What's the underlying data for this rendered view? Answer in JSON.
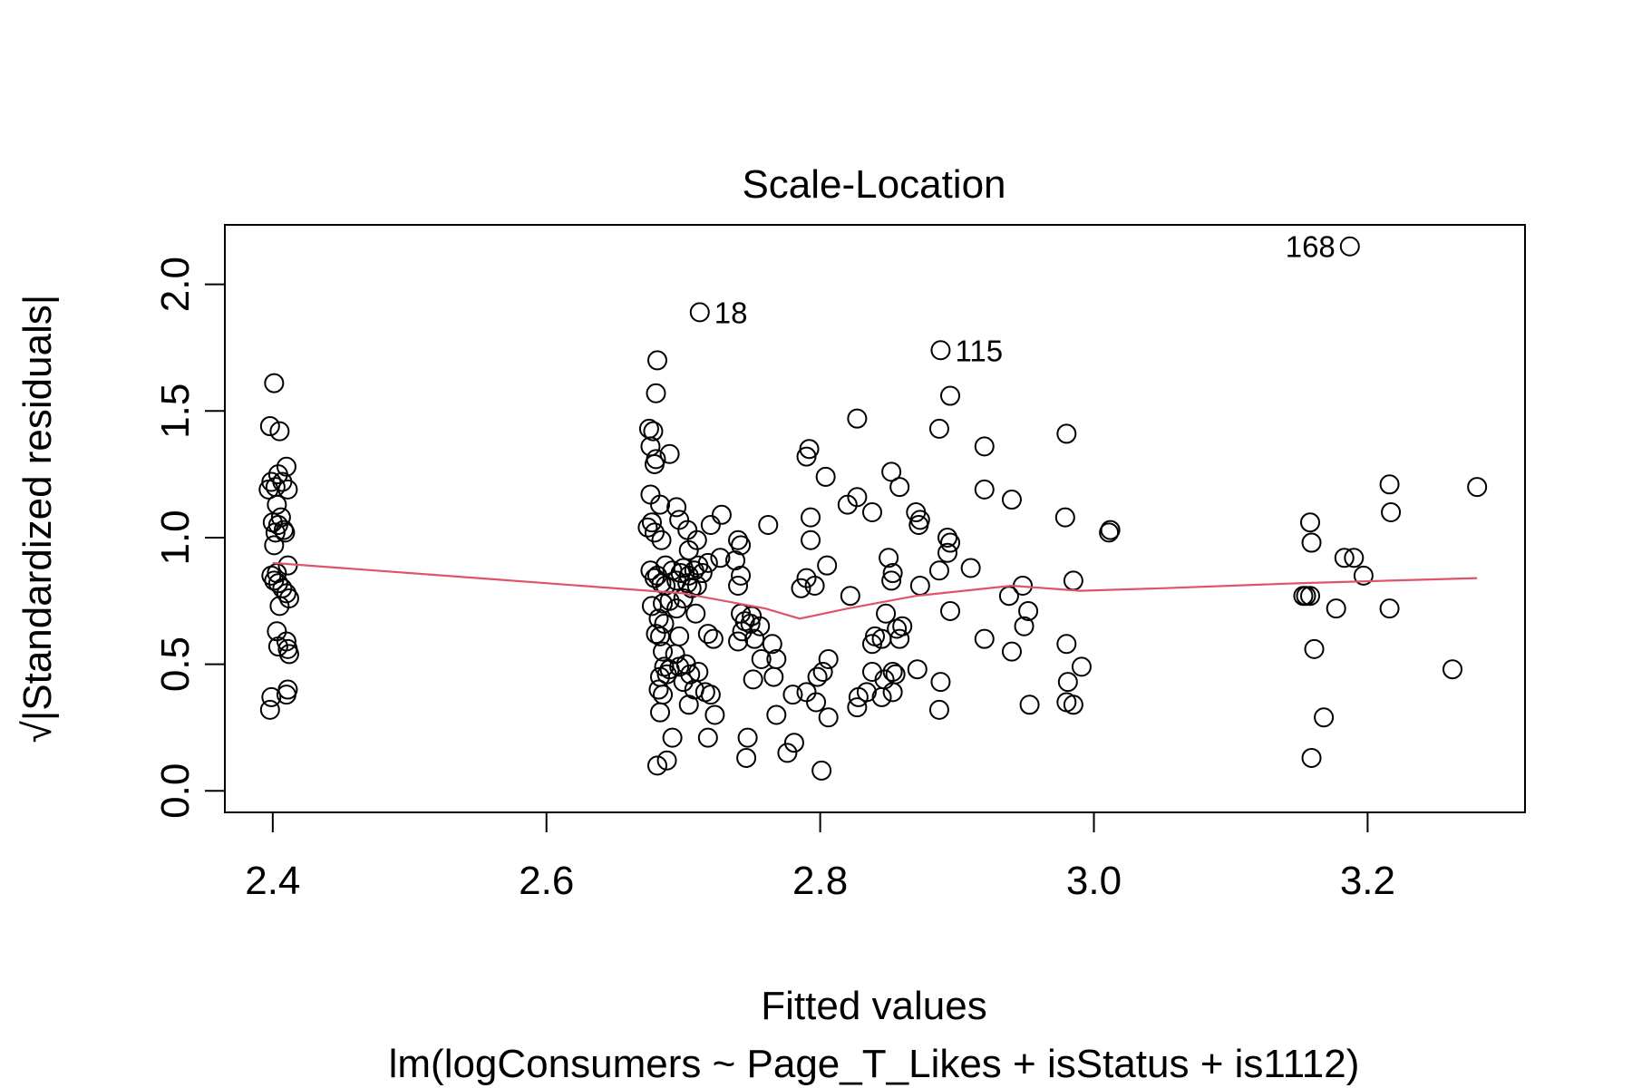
{
  "chart_data": {
    "type": "scatter",
    "title": "Scale-Location",
    "xlabel": "Fitted values",
    "ylabel": "√|Standardized residuals|",
    "subtitle": "lm(logConsumers ~ Page_T_Likes + isStatus + is1112)",
    "xlim": [
      2.365,
      3.315
    ],
    "ylim": [
      -0.085,
      2.235
    ],
    "x_ticks": [
      2.4,
      2.6,
      2.8,
      3.0,
      3.2
    ],
    "x_tick_labels": [
      "2.4",
      "2.6",
      "2.8",
      "3.0",
      "3.2"
    ],
    "y_ticks": [
      0.0,
      0.5,
      1.0,
      1.5,
      2.0
    ],
    "y_tick_labels": [
      "0.0",
      "0.5",
      "1.0",
      "1.5",
      "2.0"
    ],
    "grid": false,
    "legend": "none",
    "point_color": "#000000",
    "smoother_color": "#DF536B",
    "points": [
      [
        2.401,
        1.61
      ],
      [
        2.398,
        1.44
      ],
      [
        2.405,
        1.42
      ],
      [
        2.399,
        1.22
      ],
      [
        2.404,
        1.25
      ],
      [
        2.41,
        1.28
      ],
      [
        2.397,
        1.19
      ],
      [
        2.402,
        1.2
      ],
      [
        2.407,
        1.22
      ],
      [
        2.411,
        1.19
      ],
      [
        2.403,
        1.13
      ],
      [
        2.4,
        1.06
      ],
      [
        2.406,
        1.08
      ],
      [
        2.404,
        1.05
      ],
      [
        2.408,
        1.03
      ],
      [
        2.402,
        1.02
      ],
      [
        2.409,
        1.02
      ],
      [
        2.401,
        0.97
      ],
      [
        2.411,
        0.89
      ],
      [
        2.399,
        0.85
      ],
      [
        2.403,
        0.86
      ],
      [
        2.401,
        0.83
      ],
      [
        2.404,
        0.82
      ],
      [
        2.407,
        0.8
      ],
      [
        2.41,
        0.78
      ],
      [
        2.412,
        0.76
      ],
      [
        2.405,
        0.73
      ],
      [
        2.403,
        0.63
      ],
      [
        2.404,
        0.57
      ],
      [
        2.41,
        0.59
      ],
      [
        2.411,
        0.56
      ],
      [
        2.412,
        0.54
      ],
      [
        2.399,
        0.37
      ],
      [
        2.398,
        0.32
      ],
      [
        2.41,
        0.38
      ],
      [
        2.411,
        0.4
      ],
      [
        2.681,
        1.7
      ],
      [
        2.68,
        1.57
      ],
      [
        2.678,
        1.42
      ],
      [
        2.675,
        1.43
      ],
      [
        2.676,
        1.36
      ],
      [
        2.679,
        1.29
      ],
      [
        2.68,
        1.31
      ],
      [
        2.69,
        1.33
      ],
      [
        2.676,
        1.17
      ],
      [
        2.683,
        1.13
      ],
      [
        2.695,
        1.12
      ],
      [
        2.697,
        1.07
      ],
      [
        2.677,
        1.06
      ],
      [
        2.674,
        1.04
      ],
      [
        2.679,
        1.02
      ],
      [
        2.703,
        1.03
      ],
      [
        2.71,
        0.99
      ],
      [
        2.684,
        0.99
      ],
      [
        2.72,
        1.05
      ],
      [
        2.728,
        1.09
      ],
      [
        2.74,
        0.99
      ],
      [
        2.742,
        0.97
      ],
      [
        2.704,
        0.95
      ],
      [
        2.718,
        0.9
      ],
      [
        2.727,
        0.92
      ],
      [
        2.738,
        0.91
      ],
      [
        2.687,
        0.89
      ],
      [
        2.692,
        0.87
      ],
      [
        2.698,
        0.86
      ],
      [
        2.7,
        0.88
      ],
      [
        2.704,
        0.85
      ],
      [
        2.708,
        0.87
      ],
      [
        2.711,
        0.89
      ],
      [
        2.714,
        0.86
      ],
      [
        2.676,
        0.87
      ],
      [
        2.679,
        0.84
      ],
      [
        2.681,
        0.85
      ],
      [
        2.684,
        0.82
      ],
      [
        2.687,
        0.81
      ],
      [
        2.695,
        0.83
      ],
      [
        2.703,
        0.82
      ],
      [
        2.706,
        0.8
      ],
      [
        2.71,
        0.81
      ],
      [
        2.74,
        0.81
      ],
      [
        2.742,
        0.85
      ],
      [
        2.677,
        0.73
      ],
      [
        2.685,
        0.74
      ],
      [
        2.69,
        0.75
      ],
      [
        2.695,
        0.72
      ],
      [
        2.7,
        0.76
      ],
      [
        2.709,
        0.7
      ],
      [
        2.742,
        0.7
      ],
      [
        2.75,
        0.69
      ],
      [
        2.745,
        0.67
      ],
      [
        2.682,
        0.68
      ],
      [
        2.68,
        0.62
      ],
      [
        2.683,
        0.61
      ],
      [
        2.686,
        0.66
      ],
      [
        2.697,
        0.61
      ],
      [
        2.718,
        0.62
      ],
      [
        2.722,
        0.6
      ],
      [
        2.743,
        0.63
      ],
      [
        2.749,
        0.66
      ],
      [
        2.756,
        0.65
      ],
      [
        2.752,
        0.6
      ],
      [
        2.74,
        0.59
      ],
      [
        2.757,
        0.52
      ],
      [
        2.765,
        0.58
      ],
      [
        2.768,
        0.52
      ],
      [
        2.685,
        0.55
      ],
      [
        2.694,
        0.54
      ],
      [
        2.702,
        0.5
      ],
      [
        2.705,
        0.46
      ],
      [
        2.711,
        0.47
      ],
      [
        2.686,
        0.49
      ],
      [
        2.688,
        0.46
      ],
      [
        2.683,
        0.45
      ],
      [
        2.69,
        0.48
      ],
      [
        2.697,
        0.49
      ],
      [
        2.7,
        0.43
      ],
      [
        2.708,
        0.4
      ],
      [
        2.716,
        0.39
      ],
      [
        2.72,
        0.38
      ],
      [
        2.685,
        0.38
      ],
      [
        2.682,
        0.4
      ],
      [
        2.704,
        0.34
      ],
      [
        2.723,
        0.3
      ],
      [
        2.683,
        0.31
      ],
      [
        2.751,
        0.44
      ],
      [
        2.766,
        0.45
      ],
      [
        2.768,
        0.3
      ],
      [
        2.692,
        0.21
      ],
      [
        2.718,
        0.21
      ],
      [
        2.747,
        0.21
      ],
      [
        2.681,
        0.1
      ],
      [
        2.688,
        0.12
      ],
      [
        2.746,
        0.13
      ],
      [
        2.712,
        1.89
      ],
      [
        2.762,
        1.05
      ],
      [
        2.792,
        1.35
      ],
      [
        2.79,
        1.32
      ],
      [
        2.804,
        1.24
      ],
      [
        2.827,
        1.47
      ],
      [
        2.852,
        1.26
      ],
      [
        2.858,
        1.2
      ],
      [
        2.827,
        1.16
      ],
      [
        2.82,
        1.13
      ],
      [
        2.838,
        1.1
      ],
      [
        2.87,
        1.1
      ],
      [
        2.873,
        1.07
      ],
      [
        2.872,
        1.05
      ],
      [
        2.793,
        1.08
      ],
      [
        2.793,
        0.99
      ],
      [
        2.85,
        0.92
      ],
      [
        2.853,
        0.86
      ],
      [
        2.805,
        0.89
      ],
      [
        2.79,
        0.84
      ],
      [
        2.786,
        0.8
      ],
      [
        2.796,
        0.81
      ],
      [
        2.852,
        0.83
      ],
      [
        2.873,
        0.81
      ],
      [
        2.822,
        0.77
      ],
      [
        2.848,
        0.7
      ],
      [
        2.86,
        0.65
      ],
      [
        2.856,
        0.64
      ],
      [
        2.858,
        0.6
      ],
      [
        2.84,
        0.61
      ],
      [
        2.845,
        0.6
      ],
      [
        2.838,
        0.58
      ],
      [
        2.806,
        0.52
      ],
      [
        2.802,
        0.47
      ],
      [
        2.798,
        0.45
      ],
      [
        2.838,
        0.47
      ],
      [
        2.853,
        0.47
      ],
      [
        2.855,
        0.46
      ],
      [
        2.847,
        0.44
      ],
      [
        2.871,
        0.48
      ],
      [
        2.828,
        0.37
      ],
      [
        2.834,
        0.39
      ],
      [
        2.845,
        0.37
      ],
      [
        2.853,
        0.39
      ],
      [
        2.78,
        0.38
      ],
      [
        2.79,
        0.39
      ],
      [
        2.797,
        0.35
      ],
      [
        2.827,
        0.33
      ],
      [
        2.806,
        0.29
      ],
      [
        2.776,
        0.15
      ],
      [
        2.781,
        0.19
      ],
      [
        2.801,
        0.08
      ],
      [
        2.888,
        1.74
      ],
      [
        2.895,
        1.56
      ],
      [
        2.887,
        1.43
      ],
      [
        2.92,
        1.36
      ],
      [
        2.893,
        1.0
      ],
      [
        2.895,
        0.98
      ],
      [
        2.893,
        0.94
      ],
      [
        2.887,
        0.87
      ],
      [
        2.91,
        0.88
      ],
      [
        2.92,
        1.19
      ],
      [
        2.94,
        1.15
      ],
      [
        2.98,
        1.41
      ],
      [
        2.979,
        1.08
      ],
      [
        2.985,
        0.83
      ],
      [
        2.938,
        0.77
      ],
      [
        2.948,
        0.81
      ],
      [
        2.952,
        0.71
      ],
      [
        2.949,
        0.65
      ],
      [
        2.94,
        0.55
      ],
      [
        2.92,
        0.6
      ],
      [
        2.895,
        0.71
      ],
      [
        2.888,
        0.43
      ],
      [
        2.887,
        0.32
      ],
      [
        2.953,
        0.34
      ],
      [
        2.98,
        0.58
      ],
      [
        2.981,
        0.43
      ],
      [
        2.991,
        0.49
      ],
      [
        2.98,
        0.35
      ],
      [
        2.985,
        0.34
      ],
      [
        3.012,
        1.03
      ],
      [
        3.011,
        1.02
      ],
      [
        3.187,
        2.15
      ],
      [
        3.158,
        1.06
      ],
      [
        3.159,
        0.98
      ],
      [
        3.153,
        0.77
      ],
      [
        3.155,
        0.77
      ],
      [
        3.158,
        0.77
      ],
      [
        3.161,
        0.56
      ],
      [
        3.168,
        0.29
      ],
      [
        3.159,
        0.13
      ],
      [
        3.177,
        0.72
      ],
      [
        3.183,
        0.92
      ],
      [
        3.19,
        0.92
      ],
      [
        3.197,
        0.85
      ],
      [
        3.216,
        1.21
      ],
      [
        3.217,
        1.1
      ],
      [
        3.216,
        0.72
      ],
      [
        3.262,
        0.48
      ],
      [
        3.28,
        1.2
      ]
    ],
    "smoother": {
      "x": [
        2.4,
        2.55,
        2.7,
        2.76,
        2.785,
        2.82,
        2.87,
        2.94,
        2.99,
        3.05,
        3.15,
        3.28
      ],
      "y": [
        0.9,
        0.84,
        0.78,
        0.72,
        0.68,
        0.72,
        0.77,
        0.81,
        0.79,
        0.8,
        0.82,
        0.84
      ]
    },
    "labeled_points": [
      {
        "label": "18",
        "x": 2.712,
        "y": 1.89,
        "side": "right"
      },
      {
        "label": "115",
        "x": 2.888,
        "y": 1.74,
        "side": "right"
      },
      {
        "label": "168",
        "x": 3.187,
        "y": 2.15,
        "side": "left"
      }
    ]
  }
}
